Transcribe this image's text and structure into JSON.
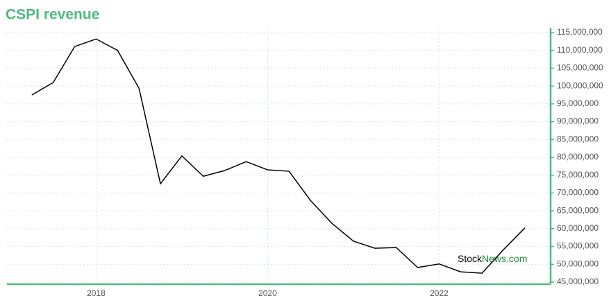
{
  "chart_data": {
    "type": "line",
    "title": "CSPI revenue",
    "x": [
      2017.25,
      2017.5,
      2017.75,
      2018.0,
      2018.25,
      2018.5,
      2018.75,
      2019.0,
      2019.25,
      2019.5,
      2019.75,
      2020.0,
      2020.25,
      2020.5,
      2020.75,
      2021.0,
      2021.25,
      2021.5,
      2021.75,
      2022.0,
      2022.25,
      2022.5,
      2022.75,
      2023.0
    ],
    "series": [
      {
        "name": "Revenue",
        "color": "#000000",
        "values": [
          97500000,
          101000000,
          111100000,
          113200000,
          110000000,
          99400000,
          72600000,
          80400000,
          74700000,
          76300000,
          78800000,
          76500000,
          76100000,
          67900000,
          61500000,
          56500000,
          54500000,
          54700000,
          49100000,
          50100000,
          47900000,
          47500000,
          54100000,
          60200000
        ]
      }
    ],
    "xlim": [
      2016.96,
      2023.3
    ],
    "xticks": [
      2018,
      2020,
      2022
    ],
    "ylim": [
      45000000,
      115000000
    ],
    "yticks": [
      {
        "value": 45000000,
        "label": "45,000,000"
      },
      {
        "value": 50000000,
        "label": "50,000,000"
      },
      {
        "value": 55000000,
        "label": "55,000,000"
      },
      {
        "value": 60000000,
        "label": "60,000,000"
      },
      {
        "value": 65000000,
        "label": "65,000,000"
      },
      {
        "value": 70000000,
        "label": "70,000,000"
      },
      {
        "value": 75000000,
        "label": "75,000,000"
      },
      {
        "value": 80000000,
        "label": "80,000,000"
      },
      {
        "value": 85000000,
        "label": "85,000,000"
      },
      {
        "value": 90000000,
        "label": "90,000,000"
      },
      {
        "value": 95000000,
        "label": "95,000,000"
      },
      {
        "value": 100000000,
        "label": "100,000,000"
      },
      {
        "value": 105000000,
        "label": "105,000,000"
      },
      {
        "value": 110000000,
        "label": "110,000,000"
      },
      {
        "value": 115000000,
        "label": "115,000,000"
      }
    ],
    "axis_color": "#4cbb7f",
    "grid": true,
    "watermark": [
      "Stock",
      "News",
      ".com"
    ]
  }
}
